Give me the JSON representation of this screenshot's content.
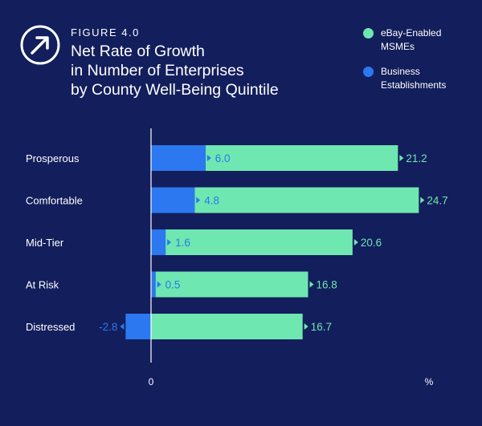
{
  "header": {
    "figure_label": "FIGURE 4.0",
    "title_lines": [
      "Net Rate of Growth",
      "in Number of Enterprises",
      "by County Well-Being Quintile"
    ]
  },
  "legend": {
    "items": [
      {
        "lines": [
          "eBay-Enabled",
          "MSMEs"
        ],
        "color": "#6ee7b0"
      },
      {
        "lines": [
          "Business",
          "Establishments"
        ],
        "color": "#2b78f0"
      }
    ]
  },
  "chart_data": {
    "type": "bar",
    "orientation": "horizontal",
    "title": "Net Rate of Growth in Number of Enterprises by County Well-Being Quintile",
    "categories": [
      "Prosperous",
      "Comfortable",
      "Mid-Tier",
      "At Risk",
      "Distressed"
    ],
    "series": [
      {
        "name": "eBay-Enabled MSMEs",
        "values": [
          21.2,
          24.7,
          20.6,
          16.8,
          16.7
        ],
        "color": "#6ee7b0",
        "labels": [
          "21.2",
          "24.7",
          "20.6",
          "16.8",
          "16.7"
        ]
      },
      {
        "name": "Business Establishments",
        "values": [
          6.0,
          4.8,
          1.6,
          0.5,
          -2.8
        ],
        "color": "#2b78f0",
        "labels": [
          "6.0",
          "4.8",
          "1.6",
          "0.5",
          "-2.8"
        ]
      }
    ],
    "xlim": [
      -3.5,
      40
    ],
    "xaxis": {
      "zero_label": "0",
      "unit_label": "%"
    },
    "xlabel": "",
    "ylabel": "",
    "grid": false
  }
}
